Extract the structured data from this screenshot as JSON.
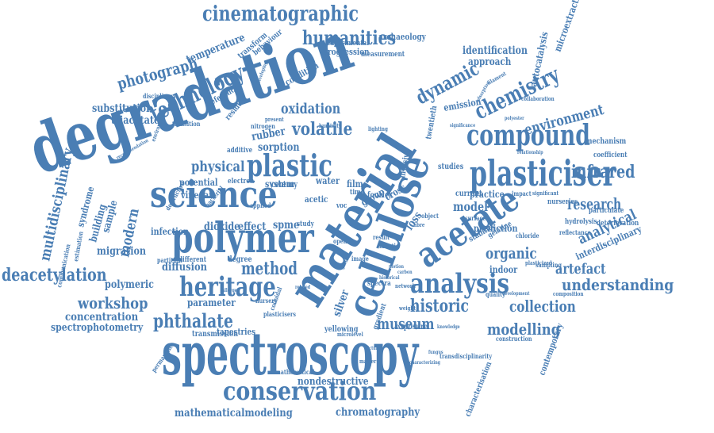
{
  "cloud": {
    "color": "#4a7eb4",
    "words": [
      "spectroscopy",
      "degradation",
      "material",
      "cellulose",
      "plasticiser",
      "polymer",
      "science",
      "acetate",
      "analysis",
      "heritage",
      "conservation",
      "compound",
      "plastic",
      "technology",
      "humanities",
      "cinematographic",
      "chemistry",
      "dynamic",
      "infrared",
      "research",
      "analytical",
      "organic",
      "understanding",
      "collection",
      "modelling",
      "museum",
      "historic",
      "deacetylation",
      "phthalate",
      "method",
      "workshop",
      "environment",
      "photograph",
      "multidisciplinary",
      "volatile",
      "physical",
      "concentration",
      "spectrophotometry",
      "mathematicalmodeling",
      "chromatography",
      "nondestructive",
      "migration",
      "diffusion",
      "polymeric",
      "interdisciplinary",
      "identification",
      "approach",
      "emission",
      "oxidation",
      "substitution",
      "triacetate",
      "temperature",
      "modern",
      "artefact",
      "model",
      "loss",
      "infection",
      "parameter",
      "sample",
      "building",
      "syndrome",
      "potential",
      "vinegar",
      "dioxide",
      "effect",
      "spme",
      "system",
      "water",
      "sorption",
      "rubber",
      "century",
      "film",
      "group",
      "cross",
      "silver",
      "yellowing",
      "tapestries",
      "transmission",
      "prediction",
      "practice",
      "stability",
      "contemporary",
      "characterisation",
      "microextraction",
      "autocatalysis",
      "archaeology",
      "progression",
      "experimental",
      "transform",
      "behaviour",
      "reference",
      "residual",
      "condition",
      "measurement",
      "mechanism",
      "coefficient",
      "hydrolysis",
      "deterioration",
      "particulate",
      "nurseries",
      "impact",
      "significant",
      "reflectance",
      "gelatine",
      "chloride",
      "sampling",
      "indoor",
      "degree",
      "different",
      "partition",
      "estimation",
      "communication",
      "permanence",
      "surface",
      "quality",
      "spectra",
      "gradient",
      "exposure",
      "construction",
      "transdisciplinarity",
      "mathematical",
      "plasticized",
      "composition",
      "kinetic",
      "fourier",
      "invasive",
      "twentieth",
      "studies",
      "current",
      "additive",
      "electron",
      "applied",
      "destructive",
      "bacterial",
      "environmental",
      "transition",
      "disciplinary",
      "nitrogen",
      "present",
      "humidity",
      "acetic",
      "voc",
      "time",
      "study",
      "nursery",
      "plasticisers",
      "image",
      "result",
      "open",
      "microlevel",
      "object",
      "fibre",
      "glass",
      "lighting",
      "weight",
      "filament",
      "collaboration",
      "adsorption",
      "significance",
      "polyester",
      "relationship",
      "development",
      "characterizing",
      "knowledge",
      "fungus",
      "historical",
      "network",
      "motion",
      "picture",
      "matter",
      "carbon",
      "colloidal",
      "allergen",
      "related",
      "developing",
      "recommendation"
    ]
  }
}
